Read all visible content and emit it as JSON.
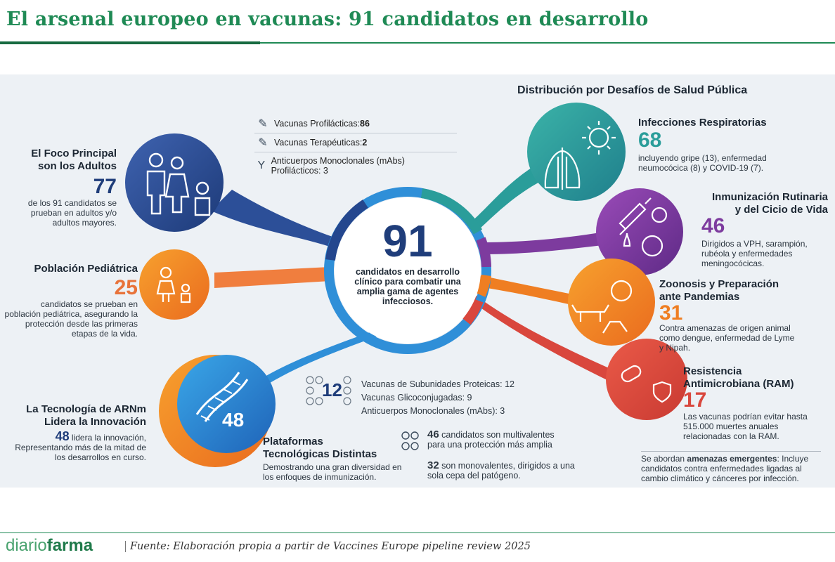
{
  "header": {
    "title": "El arsenal europeo en vacunas: 91 candidatos en desarrollo"
  },
  "center": {
    "number": "91",
    "text": "candidatos en desarrollo clínico para combatir una amplia gama de agentes infecciosos."
  },
  "types": [
    {
      "label": "Vacunas Profilácticas: ",
      "value": "86",
      "icon": "syringe-icon"
    },
    {
      "label": "Vacunas Terapéuticas: ",
      "value": "2",
      "icon": "syringe-icon"
    },
    {
      "label": "Anticuerpos Monoclonales (mAbs) Profilácticos: 3",
      "icon": "antibody-icon"
    }
  ],
  "left": {
    "adults": {
      "title1": "El Foco Principal",
      "title2": "son los Adultos",
      "number": "77",
      "text": "de los 91 candidatos se prueban en adultos y/o adultos mayores."
    },
    "pediatric": {
      "title": "Población Pediátrica",
      "number": "25",
      "text": "candidatos se prueban en población pediátrica, asegurando la protección desde las primeras etapas de la vida."
    },
    "mrna": {
      "title1": "La Tecnología de ARNm",
      "title2": "Lidera la Innovación",
      "number": "48",
      "text_rest": " lidera la innovación, Representando más de la mitad de los desarrollos en curso.",
      "bubble_number": "48"
    }
  },
  "platforms": {
    "number": "12",
    "items": [
      "Vacunas de Subunidades Proteicas: 12",
      "Vacunas Glicoconjugadas: 9",
      "Anticuerpos Monoclonales (mAbs): 3"
    ],
    "title1": "Plataformas",
    "title2": "Tecnológicas Distintas",
    "text": "Demostrando una gran diversidad en los enfoques de inmunización.",
    "multi_number": "46",
    "multi_text": " candidatos son multivalentes para una protección más amplia",
    "mono_number": "32",
    "mono_text": " son monovalentes, dirigidos a una sola cepa del patógeno."
  },
  "right": {
    "heading": "Distribución por Desafíos de Salud Pública",
    "respiratory": {
      "title": "Infecciones Respiratorias",
      "number": "68",
      "text": "incluyendo gripe (13), enfermedad neumocócica (8) y COVID-19 (7)."
    },
    "routine": {
      "title1": "Inmunización Rutinaria",
      "title2": "y del Cicio de Vida",
      "number": "46",
      "text": "Dirigidos a VPH, sarampión, rubéola y enfermedades meningocócicas."
    },
    "zoonosis": {
      "title1": "Zoonosis y Preparación",
      "title2": "ante Pandemias",
      "number": "31",
      "text": "Contra amenazas de origen animal como dengue, enfermedad de Lyme y Nipah."
    },
    "amr": {
      "title1": "Resistencia",
      "title2": "Antimicrobiana (RAM)",
      "number": "17",
      "text": "Las vacunas podrían evitar hasta 515.000 muertes anuales relacionadas con la RAM."
    },
    "emerging": {
      "pre": "Se abordan ",
      "bold": "amenazas emergentes",
      "post": ": Incluye candidatos contra enfermedades ligadas al cambio climático y cánceres por infección."
    }
  },
  "footer": {
    "logo_light": "diario",
    "logo_bold": "farma",
    "source": "Fuente: Elaboración propia a partir de Vaccines Europe pipeline review 2025"
  },
  "colors": {
    "green": "#1f8a55",
    "navy": "#1f3d7a",
    "orange": "#e8733a",
    "teal": "#2a9d9a",
    "purple": "#7d3b9e",
    "red": "#d9473d",
    "blue": "#2f8fd8"
  }
}
